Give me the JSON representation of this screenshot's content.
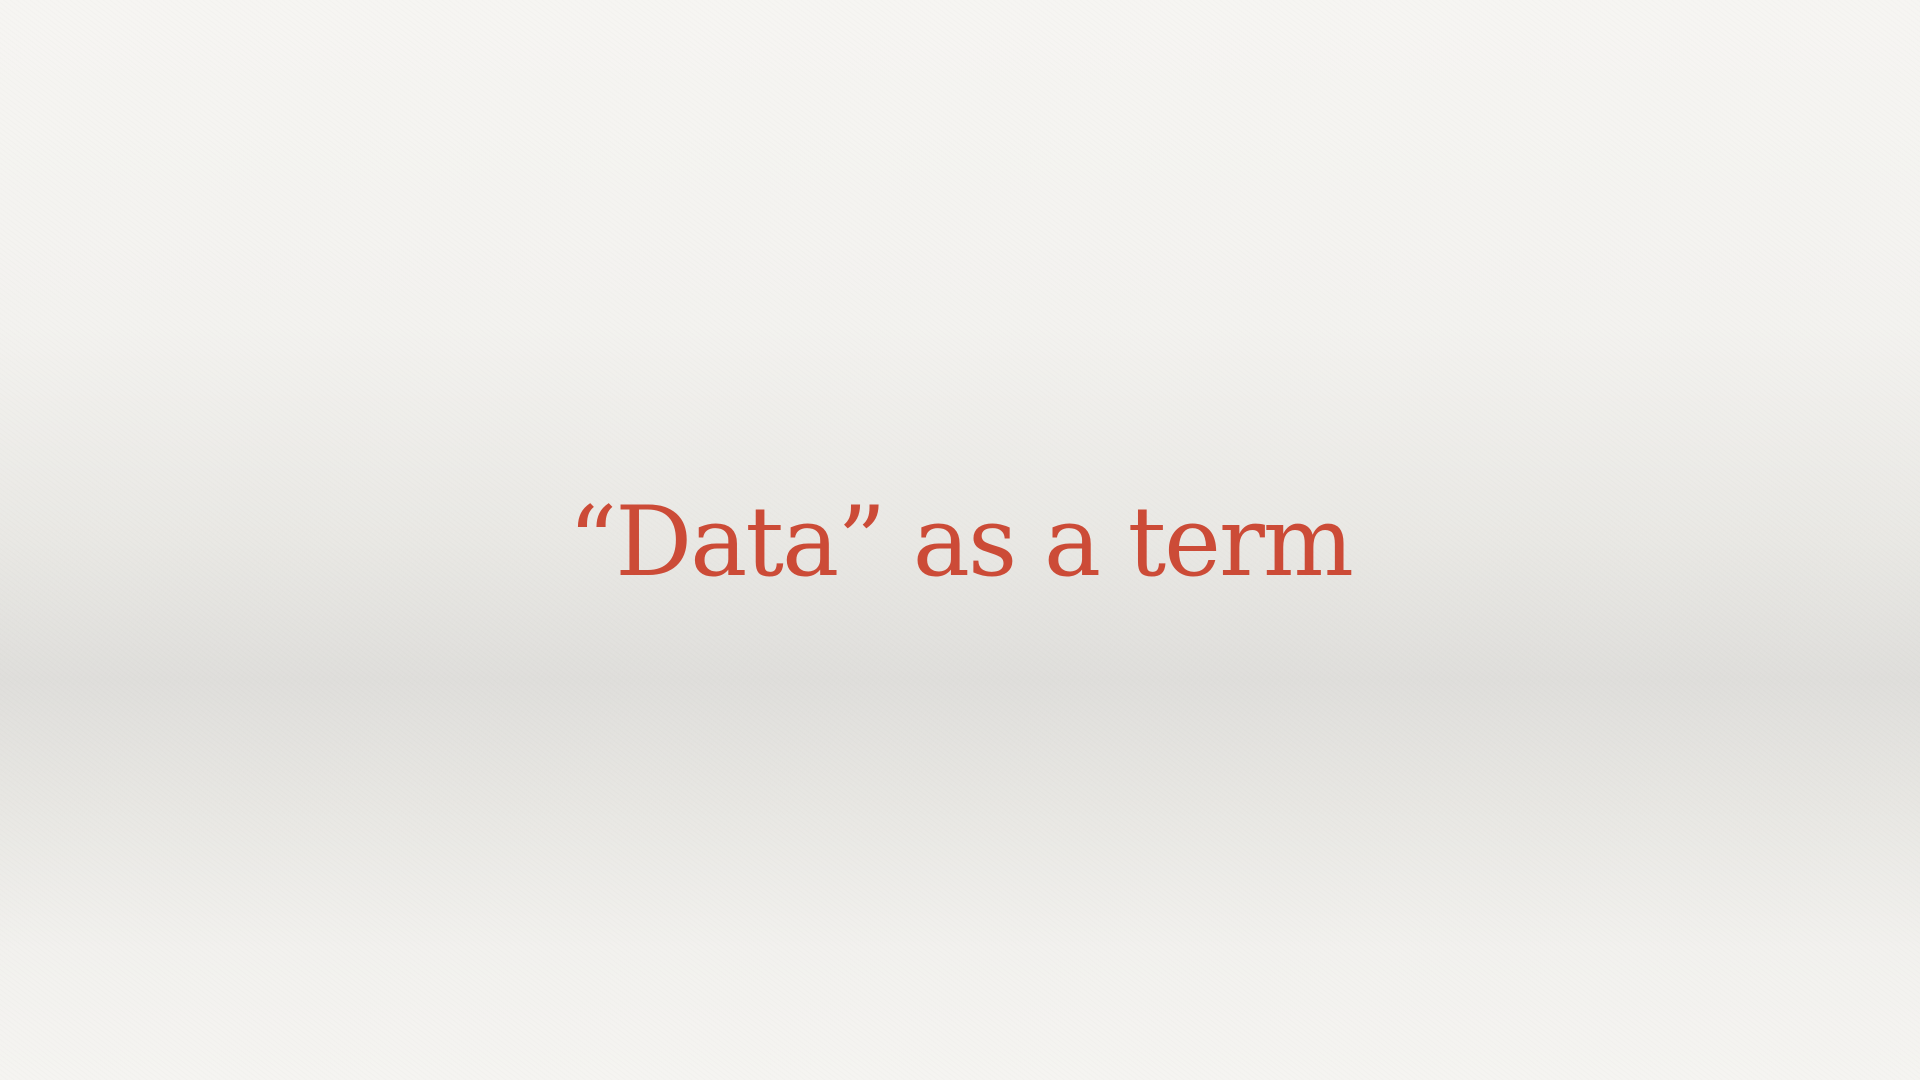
{
  "slide": {
    "title": "“Data” as a term",
    "title_color": "#cc4b37",
    "background_color": "#f3f2ef"
  }
}
